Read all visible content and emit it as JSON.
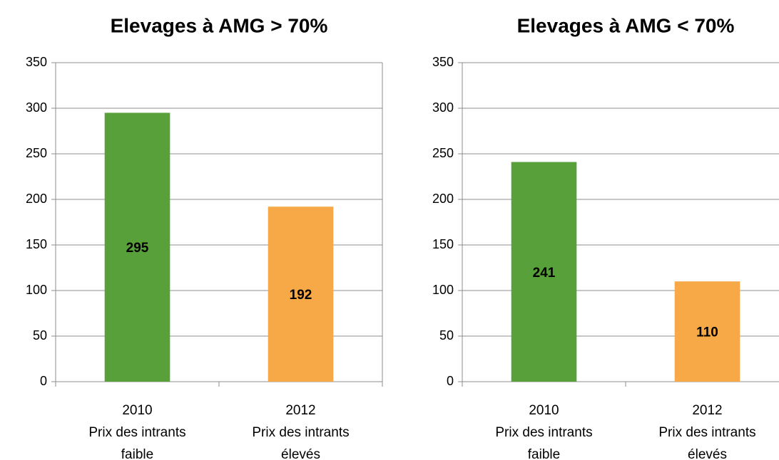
{
  "chart_data": [
    {
      "type": "bar",
      "title": "Elevages à AMG > 70%",
      "categories": [
        [
          "2010",
          "Prix des intrants",
          "faible"
        ],
        [
          "2012",
          "Prix des intrants",
          "élevés"
        ]
      ],
      "values": [
        295,
        192
      ],
      "colors": [
        "#58a03a",
        "#f7a847"
      ],
      "ylim": [
        0,
        350
      ],
      "yticks": [
        0,
        50,
        100,
        150,
        200,
        250,
        300,
        350
      ],
      "grid": true
    },
    {
      "type": "bar",
      "title": "Elevages à AMG < 70%",
      "categories": [
        [
          "2010",
          "Prix des intrants",
          "faible"
        ],
        [
          "2012",
          "Prix des intrants",
          "élevés"
        ]
      ],
      "values": [
        241,
        110
      ],
      "colors": [
        "#58a03a",
        "#f7a847"
      ],
      "ylim": [
        0,
        350
      ],
      "yticks": [
        0,
        50,
        100,
        150,
        200,
        250,
        300,
        350
      ],
      "grid": true
    }
  ]
}
